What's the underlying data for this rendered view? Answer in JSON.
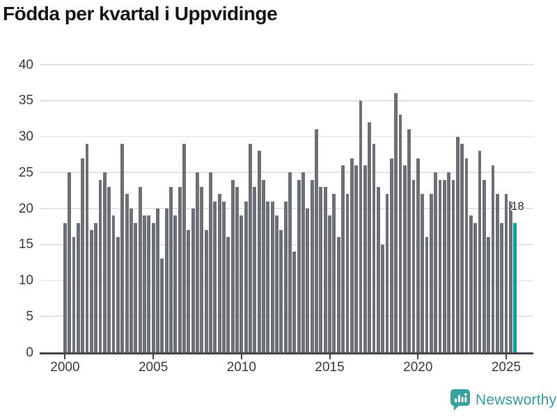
{
  "title": "Födda per kvartal i Uppvidinge",
  "chart_data": {
    "type": "bar",
    "title": "Födda per kvartal i Uppvidinge",
    "x_start": "2000-Q1",
    "x_end": "2025-Q3",
    "values": [
      18,
      25,
      16,
      18,
      27,
      29,
      17,
      18,
      24,
      25,
      23,
      19,
      16,
      29,
      22,
      20,
      18,
      23,
      19,
      19,
      18,
      20,
      13,
      20,
      23,
      19,
      23,
      29,
      17,
      20,
      25,
      23,
      17,
      25,
      21,
      22,
      21,
      16,
      24,
      23,
      19,
      21,
      29,
      23,
      28,
      24,
      21,
      21,
      19,
      17,
      21,
      25,
      14,
      24,
      25,
      20,
      24,
      31,
      23,
      23,
      19,
      22,
      16,
      26,
      22,
      27,
      26,
      35,
      26,
      32,
      29,
      23,
      15,
      22,
      27,
      36,
      33,
      26,
      31,
      24,
      27,
      22,
      16,
      22,
      25,
      24,
      24,
      25,
      24,
      30,
      29,
      27,
      19,
      18,
      28,
      24,
      16,
      26,
      22,
      18,
      22,
      21,
      18
    ],
    "yticks": [
      0,
      5,
      10,
      15,
      20,
      25,
      30,
      35,
      40
    ],
    "ylim": [
      0,
      40
    ],
    "xticks": [
      {
        "label": "2000",
        "index": 0
      },
      {
        "label": "2005",
        "index": 20
      },
      {
        "label": "2010",
        "index": 40
      },
      {
        "label": "2015",
        "index": 60
      },
      {
        "label": "2020",
        "index": 80
      },
      {
        "label": "2025",
        "index": 100
      }
    ],
    "grid": "horizontal",
    "legend": "none",
    "bar_color": "#6d7076",
    "highlight_color": "#0ba09e",
    "highlight_index": 102,
    "annotation": {
      "text": "18"
    }
  },
  "footer": {
    "brand": "Newsworthy",
    "brand_color": "#3a9c99",
    "logo_icon": "bar-chart-speech-bubble-icon"
  }
}
